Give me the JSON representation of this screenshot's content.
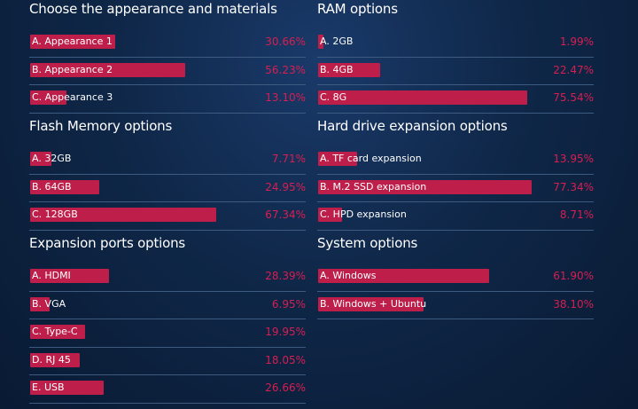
{
  "chart_data": [
    {
      "type": "bar",
      "title": "Choose the appearance and materials",
      "categories": [
        "A. Appearance 1",
        "B. Appearance 2",
        "C. Appearance 3"
      ],
      "values": [
        30.66,
        56.23,
        13.1
      ],
      "value_labels": [
        "30.66%",
        "56.23%",
        "13.10%"
      ]
    },
    {
      "type": "bar",
      "title": "RAM options",
      "categories": [
        "A. 2GB",
        "B. 4GB",
        "C. 8G"
      ],
      "values": [
        1.99,
        22.47,
        75.54
      ],
      "value_labels": [
        "1.99%",
        "22.47%",
        "75.54%"
      ]
    },
    {
      "type": "bar",
      "title": "Flash Memory options",
      "categories": [
        "A. 32GB",
        "B. 64GB",
        "C. 128GB"
      ],
      "values": [
        7.71,
        24.95,
        67.34
      ],
      "value_labels": [
        "7.71%",
        "24.95%",
        "67.34%"
      ]
    },
    {
      "type": "bar",
      "title": "Hard drive expansion options",
      "categories": [
        "A. TF card expansion",
        "B. M.2 SSD expansion",
        "C. HPD expansion"
      ],
      "values": [
        13.95,
        77.34,
        8.71
      ],
      "value_labels": [
        "13.95%",
        "77.34%",
        "8.71%"
      ]
    },
    {
      "type": "bar",
      "title": "Expansion ports options",
      "categories": [
        "A. HDMI",
        "B. VGA",
        "C. Type-C",
        "D. RJ 45",
        "E. USB"
      ],
      "values": [
        28.39,
        6.95,
        19.95,
        18.05,
        26.66
      ],
      "value_labels": [
        "28.39%",
        "6.95%",
        "19.95%",
        "18.05%",
        "26.66%"
      ]
    },
    {
      "type": "bar",
      "title": "System options",
      "categories": [
        "A. Windows",
        "B. Windows + Ubuntu"
      ],
      "values": [
        61.9,
        38.1
      ],
      "value_labels": [
        "61.90%",
        "38.10%"
      ]
    }
  ],
  "colors": {
    "bar": "#be1f4a",
    "percent": "#d81e52",
    "divider": "#3d5a80",
    "text": "#ffffff"
  }
}
